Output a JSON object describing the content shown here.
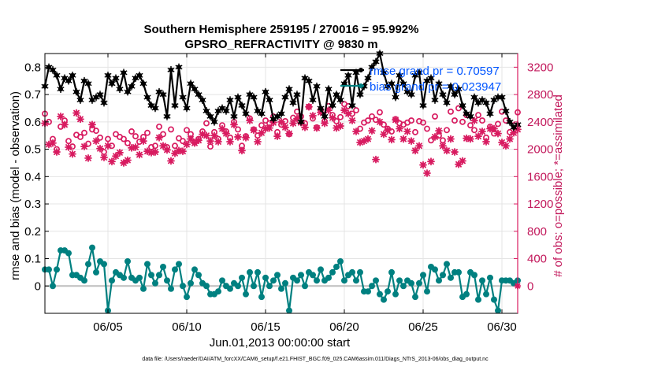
{
  "chart_data": {
    "type": "line",
    "title": "Southern Hemisphere 259195 / 270016 = 95.992%",
    "subtitle": "GPSRO_REFRACTIVITY @ 9830 m",
    "xlabel": "Jun.01,2013 00:00:00 start",
    "ylabel_left": "rmse and bias (model - observation)",
    "ylabel_right": "# of obs: o=possible; *=assimilated",
    "x_ticks": [
      {
        "label": "06/05",
        "value": 5
      },
      {
        "label": "06/10",
        "value": 10
      },
      {
        "label": "06/15",
        "value": 15
      },
      {
        "label": "06/20",
        "value": 20
      },
      {
        "label": "06/25",
        "value": 25
      },
      {
        "label": "06/30",
        "value": 30
      }
    ],
    "x_range": [
      1,
      31
    ],
    "y_left_range": [
      -0.1,
      0.85
    ],
    "y_left_ticks": [
      0,
      0.1,
      0.2,
      0.3,
      0.4,
      0.5,
      0.6,
      0.7,
      0.8
    ],
    "y_left_tick_labels": [
      "0",
      "0.1",
      "0.2",
      "0.3",
      "0.4",
      "0.5",
      "0.6",
      "0.7",
      "0.8"
    ],
    "y_right_range": [
      -400,
      3400
    ],
    "y_right_ticks": [
      0,
      400,
      800,
      1200,
      1600,
      2000,
      2400,
      2800,
      3200
    ],
    "y_right_tick_labels": [
      "0",
      "400",
      "800",
      "1200",
      "1600",
      "2000",
      "2400",
      "2800",
      "3200"
    ],
    "grid": true,
    "legend": {
      "position": "top-right",
      "entries": [
        {
          "label": "rmse grand pr = 0.70597",
          "color": "#000000"
        },
        {
          "label": "bias grand pr = 0.023947",
          "color": "#008080"
        }
      ]
    },
    "footer_text": "data file: /Users/raeder/DAI/ATM_forcXX/CAM6_setup/f.e21.FHIST_BGC.f09_025.CAM6assim.011/Diags_NTrS_2013-06/obs_diag_output.nc",
    "series": [
      {
        "name": "rmse",
        "axis": "left",
        "color": "#000000",
        "x": [
          1.0,
          1.25,
          1.5,
          1.75,
          2.0,
          2.25,
          2.5,
          2.75,
          3.0,
          3.25,
          3.5,
          3.75,
          4.0,
          4.25,
          4.5,
          4.75,
          5.0,
          5.25,
          5.5,
          5.75,
          6.0,
          6.25,
          6.5,
          6.75,
          7.0,
          7.25,
          7.5,
          7.75,
          8.0,
          8.25,
          8.5,
          8.75,
          9.0,
          9.25,
          9.5,
          9.75,
          10.0,
          10.25,
          10.5,
          10.75,
          11.0,
          11.25,
          11.5,
          11.75,
          12.0,
          12.25,
          12.5,
          12.75,
          13.0,
          13.25,
          13.5,
          13.75,
          14.0,
          14.25,
          14.5,
          14.75,
          15.0,
          15.25,
          15.5,
          15.75,
          16.0,
          16.25,
          16.5,
          16.75,
          17.0,
          17.25,
          17.5,
          17.75,
          18.0,
          18.25,
          18.5,
          18.75,
          19.0,
          19.25,
          19.5,
          19.75,
          20.0,
          20.25,
          20.5,
          20.75,
          21.0,
          21.25,
          21.5,
          21.75,
          22.0,
          22.25,
          22.5,
          22.75,
          23.0,
          23.25,
          23.5,
          23.75,
          24.0,
          24.25,
          24.5,
          24.75,
          25.0,
          25.25,
          25.5,
          25.75,
          26.0,
          26.25,
          26.5,
          26.75,
          27.0,
          27.25,
          27.5,
          27.75,
          28.0,
          28.25,
          28.5,
          28.75,
          29.0,
          29.25,
          29.5,
          29.75,
          30.0,
          30.25,
          30.5,
          30.75,
          31.0
        ],
        "values": [
          0.73,
          0.8,
          0.79,
          0.77,
          0.72,
          0.76,
          0.75,
          0.77,
          0.71,
          0.68,
          0.75,
          0.74,
          0.68,
          0.69,
          0.7,
          0.67,
          0.77,
          0.74,
          0.76,
          0.72,
          0.78,
          0.71,
          0.73,
          0.76,
          0.77,
          0.74,
          0.69,
          0.66,
          0.65,
          0.71,
          0.7,
          0.62,
          0.79,
          0.66,
          0.8,
          0.69,
          0.65,
          0.74,
          0.72,
          0.7,
          0.68,
          0.64,
          0.62,
          0.6,
          0.64,
          0.65,
          0.64,
          0.68,
          0.62,
          0.69,
          0.66,
          0.63,
          0.7,
          0.69,
          0.64,
          0.63,
          0.71,
          0.68,
          0.61,
          0.62,
          0.63,
          0.69,
          0.72,
          0.67,
          0.7,
          0.6,
          0.76,
          0.75,
          0.68,
          0.73,
          0.65,
          0.62,
          0.72,
          0.66,
          0.7,
          0.68,
          0.74,
          0.77,
          0.66,
          0.78,
          0.7,
          0.73,
          0.76,
          0.8,
          0.82,
          0.85,
          0.78,
          0.73,
          0.74,
          0.69,
          0.77,
          0.74,
          0.71,
          0.7,
          0.77,
          0.78,
          0.66,
          0.75,
          0.76,
          0.68,
          0.74,
          0.7,
          0.67,
          0.73,
          0.7,
          0.72,
          0.66,
          0.63,
          0.62,
          0.69,
          0.67,
          0.68,
          0.67,
          0.63,
          0.68,
          0.69,
          0.69,
          0.64,
          0.6,
          0.58,
          0.59
        ]
      },
      {
        "name": "bias",
        "axis": "left",
        "color": "#008080",
        "x": [
          1.0,
          1.25,
          1.5,
          1.75,
          2.0,
          2.25,
          2.5,
          2.75,
          3.0,
          3.25,
          3.5,
          3.75,
          4.0,
          4.25,
          4.5,
          4.75,
          5.0,
          5.25,
          5.5,
          5.75,
          6.0,
          6.25,
          6.5,
          6.75,
          7.0,
          7.25,
          7.5,
          7.75,
          8.0,
          8.25,
          8.5,
          8.75,
          9.0,
          9.25,
          9.5,
          9.75,
          10.0,
          10.25,
          10.5,
          10.75,
          11.0,
          11.25,
          11.5,
          11.75,
          12.0,
          12.25,
          12.5,
          12.75,
          13.0,
          13.25,
          13.5,
          13.75,
          14.0,
          14.25,
          14.5,
          14.75,
          15.0,
          15.25,
          15.5,
          15.75,
          16.0,
          16.25,
          16.5,
          16.75,
          17.0,
          17.25,
          17.5,
          17.75,
          18.0,
          18.25,
          18.5,
          18.75,
          19.0,
          19.25,
          19.5,
          19.75,
          20.0,
          20.25,
          20.5,
          20.75,
          21.0,
          21.25,
          21.5,
          21.75,
          22.0,
          22.25,
          22.5,
          22.75,
          23.0,
          23.25,
          23.5,
          23.75,
          24.0,
          24.25,
          24.5,
          24.75,
          25.0,
          25.25,
          25.5,
          25.75,
          26.0,
          26.25,
          26.5,
          26.75,
          27.0,
          27.25,
          27.5,
          27.75,
          28.0,
          28.25,
          28.5,
          28.75,
          29.0,
          29.25,
          29.5,
          29.75,
          30.0,
          30.25,
          30.5,
          30.75,
          31.0
        ],
        "values": [
          0.06,
          0.06,
          0.0,
          0.06,
          0.13,
          0.13,
          0.12,
          0.04,
          0.04,
          0.03,
          0.02,
          0.08,
          0.14,
          0.05,
          0.09,
          0.08,
          -0.09,
          0.02,
          0.05,
          0.04,
          0.03,
          0.09,
          0.03,
          0.02,
          0.03,
          -0.01,
          0.08,
          0.04,
          0.01,
          0.04,
          0.07,
          0.02,
          -0.01,
          0.06,
          0.08,
          0.0,
          -0.04,
          0.01,
          0.06,
          0.04,
          0.01,
          0.0,
          -0.03,
          -0.03,
          -0.02,
          0.02,
          0.0,
          -0.01,
          0.01,
          0.0,
          0.03,
          -0.03,
          0.05,
          0.0,
          0.05,
          -0.04,
          0.03,
          0.0,
          0.02,
          0.04,
          -0.01,
          0.01,
          -0.09,
          0.03,
          0.02,
          0.04,
          0.0,
          0.05,
          0.04,
          0.02,
          0.06,
          0.02,
          0.03,
          0.05,
          0.07,
          0.09,
          0.02,
          0.04,
          0.05,
          0.02,
          0.05,
          -0.02,
          -0.02,
          0.0,
          0.02,
          -0.03,
          -0.05,
          -0.02,
          0.05,
          -0.03,
          0.02,
          0.0,
          0.02,
          0.01,
          -0.04,
          0.01,
          0.04,
          -0.02,
          0.07,
          0.06,
          0.02,
          0.04,
          0.08,
          0.03,
          0.05,
          0.05,
          -0.04,
          -0.03,
          0.05,
          0.04,
          -0.05,
          0.02,
          -0.03,
          0.03,
          -0.05,
          -0.09,
          0.02,
          0.02,
          0.02,
          0.01,
          0.02
        ]
      },
      {
        "name": "possible",
        "axis": "right",
        "color": "#d81b60",
        "marker": "o",
        "x": [
          1.0,
          1.25,
          1.5,
          1.75,
          2.0,
          2.25,
          2.5,
          2.75,
          3.0,
          3.25,
          3.5,
          3.75,
          4.0,
          4.25,
          4.5,
          4.75,
          5.0,
          5.25,
          5.5,
          5.75,
          6.0,
          6.25,
          6.5,
          6.75,
          7.0,
          7.25,
          7.5,
          7.75,
          8.0,
          8.25,
          8.5,
          8.75,
          9.0,
          9.25,
          9.5,
          9.75,
          10.0,
          10.25,
          10.5,
          10.75,
          11.0,
          11.25,
          11.5,
          11.75,
          12.0,
          12.25,
          12.5,
          12.75,
          13.0,
          13.25,
          13.5,
          13.75,
          14.0,
          14.25,
          14.5,
          14.75,
          15.0,
          15.25,
          15.5,
          15.75,
          16.0,
          16.25,
          16.5,
          16.75,
          17.0,
          17.25,
          17.5,
          17.75,
          18.0,
          18.25,
          18.5,
          18.75,
          19.0,
          19.25,
          19.5,
          19.75,
          20.0,
          20.25,
          20.5,
          20.75,
          21.0,
          21.25,
          21.5,
          21.75,
          22.0,
          22.25,
          22.5,
          22.75,
          23.0,
          23.25,
          23.5,
          23.75,
          24.0,
          24.25,
          24.5,
          24.75,
          25.0,
          25.25,
          25.5,
          25.75,
          26.0,
          26.25,
          26.5,
          26.75,
          27.0,
          27.25,
          27.5,
          27.75,
          28.0,
          28.25,
          28.5,
          28.75,
          29.0,
          29.25,
          29.5,
          29.75,
          30.0,
          30.25,
          30.5,
          30.75,
          31.0
        ],
        "values": [
          2520,
          2400,
          2150,
          2000,
          2330,
          2420,
          2120,
          2040,
          2210,
          2180,
          2240,
          2080,
          2290,
          2270,
          2170,
          1960,
          2150,
          2050,
          2220,
          2180,
          2150,
          2090,
          2260,
          2190,
          2110,
          2180,
          2240,
          2030,
          2050,
          2330,
          2220,
          2030,
          2290,
          2050,
          2160,
          2120,
          2280,
          2220,
          2100,
          2150,
          2260,
          2380,
          2040,
          2250,
          2150,
          2350,
          2260,
          2170,
          2400,
          2290,
          2050,
          2190,
          2450,
          2290,
          2200,
          2350,
          2420,
          2380,
          2480,
          2250,
          2360,
          2410,
          2220,
          2460,
          2550,
          2480,
          2380,
          2620,
          2450,
          2320,
          2580,
          2410,
          2630,
          2500,
          2410,
          2470,
          2660,
          2630,
          2520,
          2570,
          2300,
          2390,
          2420,
          2480,
          2430,
          2540,
          2360,
          2300,
          2260,
          2440,
          2380,
          2360,
          2390,
          2420,
          2250,
          2410,
          2390,
          2300,
          2130,
          2480,
          2200,
          2130,
          2280,
          2550,
          2420,
          2600,
          2400,
          2500,
          2350,
          2280,
          2500,
          2420,
          2170,
          2330,
          2230,
          2370,
          2550,
          2420,
          2250,
          2350,
          2540
        ]
      },
      {
        "name": "assimilated",
        "axis": "right",
        "color": "#d81b60",
        "marker": "*",
        "x": [
          1.0,
          1.25,
          1.5,
          1.75,
          2.0,
          2.25,
          2.5,
          2.75,
          3.0,
          3.25,
          3.5,
          3.75,
          4.0,
          4.25,
          4.5,
          4.75,
          5.0,
          5.25,
          5.5,
          5.75,
          6.0,
          6.25,
          6.5,
          6.75,
          7.0,
          7.25,
          7.5,
          7.75,
          8.0,
          8.25,
          8.5,
          8.75,
          9.0,
          9.25,
          9.5,
          9.75,
          10.0,
          10.25,
          10.5,
          10.75,
          11.0,
          11.25,
          11.5,
          11.75,
          12.0,
          12.25,
          12.5,
          12.75,
          13.0,
          13.25,
          13.5,
          13.75,
          14.0,
          14.25,
          14.5,
          14.75,
          15.0,
          15.25,
          15.5,
          15.75,
          16.0,
          16.25,
          16.5,
          16.75,
          17.0,
          17.25,
          17.5,
          17.75,
          18.0,
          18.25,
          18.5,
          18.75,
          19.0,
          19.25,
          19.5,
          19.75,
          20.0,
          20.25,
          20.5,
          20.75,
          21.0,
          21.25,
          21.5,
          21.75,
          22.0,
          22.25,
          22.5,
          22.75,
          23.0,
          23.25,
          23.5,
          23.75,
          24.0,
          24.25,
          24.5,
          24.75,
          25.0,
          25.25,
          25.5,
          25.75,
          26.0,
          26.25,
          26.5,
          26.75,
          27.0,
          27.25,
          27.5,
          27.75,
          28.0,
          28.25,
          28.5,
          28.75,
          29.0,
          29.25,
          29.5,
          29.75,
          30.0,
          30.25,
          30.5,
          30.75,
          31.0
        ],
        "values": [
          2380,
          2070,
          2090,
          1960,
          2480,
          2360,
          2030,
          1930,
          2530,
          2440,
          2040,
          1870,
          2360,
          2120,
          2010,
          1880,
          2050,
          1820,
          1900,
          1950,
          1800,
          1840,
          2020,
          2030,
          1920,
          2120,
          1970,
          1950,
          1960,
          2170,
          2050,
          1990,
          1830,
          1940,
          1980,
          1970,
          2070,
          2150,
          2090,
          2130,
          2220,
          2200,
          2120,
          2200,
          2110,
          2300,
          2230,
          2110,
          2360,
          2180,
          1980,
          2170,
          2420,
          2280,
          2110,
          2240,
          2300,
          2310,
          2390,
          2190,
          2400,
          2320,
          2230,
          2380,
          2450,
          2390,
          2320,
          2620,
          2490,
          2310,
          2540,
          2380,
          2570,
          2460,
          2310,
          2340,
          2570,
          2520,
          2420,
          2260,
          2100,
          2120,
          2150,
          2270,
          1850,
          2400,
          2220,
          2280,
          2140,
          2430,
          2300,
          2150,
          2260,
          2120,
          1980,
          2050,
          1770,
          1650,
          1820,
          2180,
          2270,
          2050,
          1980,
          2150,
          1960,
          1780,
          1830,
          2160,
          2150,
          2420,
          2190,
          2260,
          2110,
          2300,
          2300,
          2230,
          2100,
          2050,
          2150,
          2240,
          2290
        ]
      }
    ]
  }
}
